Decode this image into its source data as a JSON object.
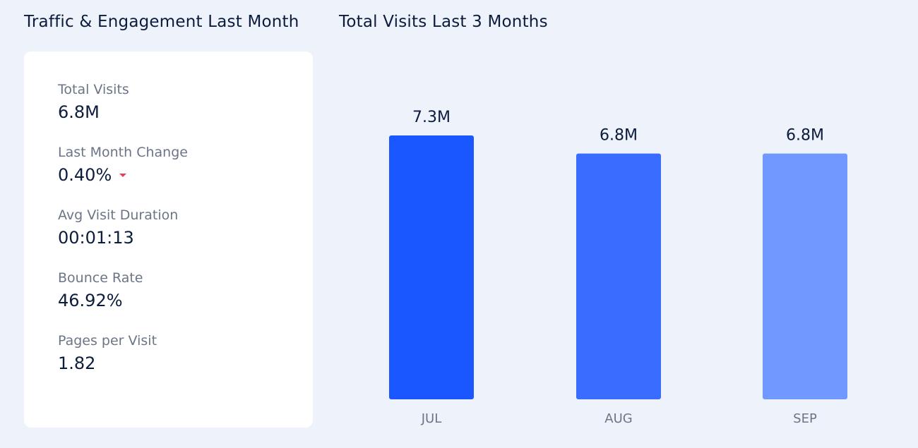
{
  "left_title": "Traffic & Engagement Last Month",
  "right_title": "Total Visits Last 3 Months",
  "metrics": [
    {
      "label": "Total Visits",
      "value": "6.8M"
    },
    {
      "label": "Last Month Change",
      "value": "0.40%",
      "trend": "down",
      "trend_color": "#e0425b"
    },
    {
      "label": "Avg Visit Duration",
      "value": "00:01:13"
    },
    {
      "label": "Bounce Rate",
      "value": "46.92%"
    },
    {
      "label": "Pages per Visit",
      "value": "1.82"
    }
  ],
  "chart_data": {
    "type": "bar",
    "title": "Total Visits Last 3 Months",
    "categories": [
      "JUL",
      "AUG",
      "SEP"
    ],
    "values": [
      7.3,
      6.8,
      6.8
    ],
    "value_labels": [
      "7.3M",
      "6.8M",
      "6.8M"
    ],
    "unit": "M",
    "colors": [
      "#1a57ff",
      "#3a6dff",
      "#7098ff"
    ],
    "ylim": [
      0,
      7.3
    ],
    "grid": false,
    "legend": "none"
  }
}
